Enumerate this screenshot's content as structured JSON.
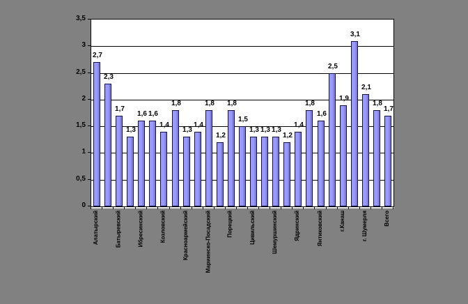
{
  "chart_data": {
    "type": "bar",
    "title": "",
    "xlabel": "",
    "ylabel": "",
    "categories": [
      "Алатырский",
      "",
      "Батыревский",
      "",
      "Ибресинский",
      "",
      "Козловский",
      "",
      "Красноармейский",
      "",
      "Мариинско-Посадский",
      "",
      "Порецкий",
      "",
      "Цивильский",
      "",
      "Шемуршинский",
      "",
      "Ядринский",
      "",
      "Янтиковский",
      "",
      "г.Канаш",
      "",
      "г. Шумерля",
      "",
      "Всего"
    ],
    "values": [
      2.7,
      2.3,
      1.7,
      1.3,
      1.6,
      1.6,
      1.4,
      1.8,
      1.3,
      1.4,
      1.8,
      1.2,
      1.8,
      1.5,
      1.3,
      1.3,
      1.3,
      1.2,
      1.4,
      1.8,
      1.6,
      2.5,
      1.9,
      3.1,
      2.1,
      1.8,
      1.7
    ],
    "value_labels": [
      "2,7",
      "2,3",
      "1,7",
      "1,3",
      "1,6",
      "1,6",
      "1,4",
      "1,8",
      "1,3",
      "1,4",
      "1,8",
      "1,2",
      "1,8",
      "1,5",
      "1,3",
      "1,3",
      "1,3",
      "1,2",
      "1,4",
      "1,8",
      "1,6",
      "2,5",
      "1,9",
      "3,1",
      "2,1",
      "1,8",
      "1,7"
    ],
    "y_tick_labels": [
      "0",
      "0,5",
      "1",
      "1,5",
      "2",
      "2,5",
      "3",
      "3,5"
    ],
    "y_tick_values": [
      0,
      0.5,
      1,
      1.5,
      2,
      2.5,
      3,
      3.5
    ],
    "ylim": [
      0,
      3.5
    ],
    "grid": true,
    "legend": false,
    "category_label_interval": 2,
    "colors": {
      "page_background": "#818181",
      "plot_background": "#ffffff",
      "bar_fill": "#9999ff",
      "bar_side_shade": "#8080cc",
      "bar_border": "#10104a",
      "gridline": "#000000",
      "text": "#000000"
    }
  }
}
